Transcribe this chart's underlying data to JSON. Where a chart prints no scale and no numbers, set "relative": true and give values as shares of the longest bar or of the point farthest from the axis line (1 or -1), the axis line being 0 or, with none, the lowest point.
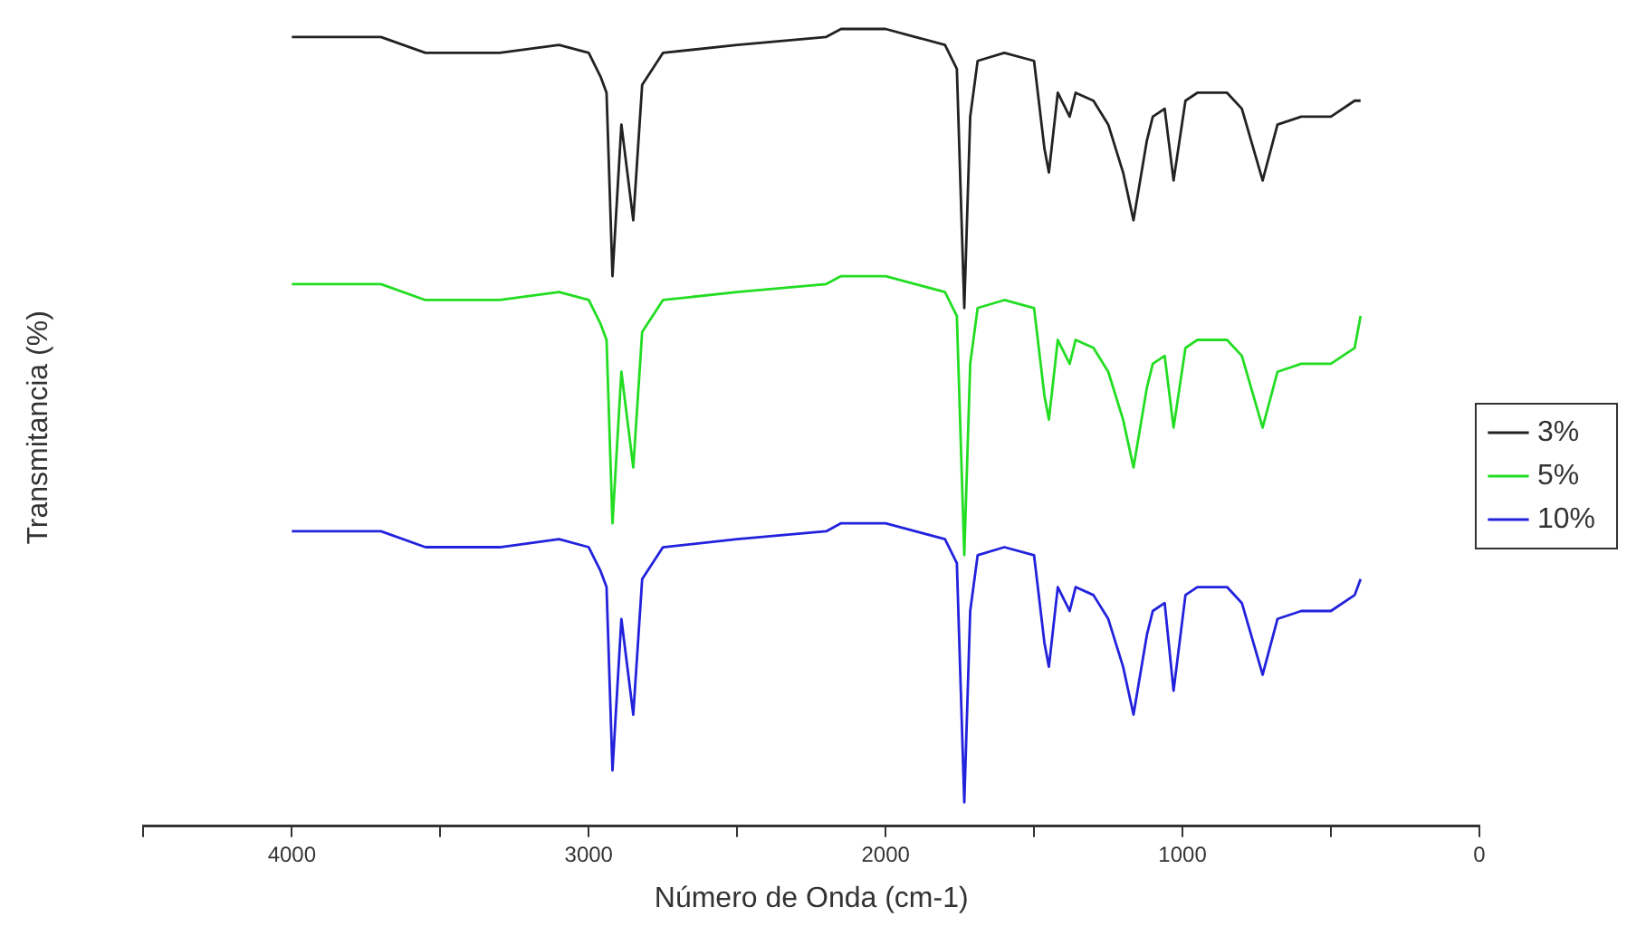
{
  "chart_data": {
    "type": "line",
    "relative": true,
    "xlabel": "Número de Onda (cm-1)",
    "ylabel": "Transmitancia (%)",
    "x": [
      4000,
      3700,
      3550,
      3300,
      3100,
      3000,
      2960,
      2940,
      2920,
      2890,
      2850,
      2820,
      2750,
      2500,
      2200,
      2150,
      2050,
      2000,
      1900,
      1800,
      1760,
      1735,
      1715,
      1690,
      1600,
      1500,
      1465,
      1450,
      1420,
      1380,
      1360,
      1300,
      1250,
      1200,
      1165,
      1120,
      1100,
      1060,
      1030,
      990,
      950,
      850,
      800,
      730,
      680,
      600,
      500,
      420,
      400
    ],
    "xlim": [
      4500,
      0
    ],
    "xticks": [
      {
        "value": 4500,
        "label": null
      },
      4000,
      {
        "value": 3500,
        "label": null
      },
      3000,
      {
        "value": 2500,
        "label": null
      },
      2000,
      {
        "value": 1500,
        "label": null
      },
      1000,
      {
        "value": 500,
        "label": null
      },
      0
    ],
    "series": [
      {
        "name": "3%",
        "color": "#222222",
        "values": [
          0.99,
          0.99,
          0.97,
          0.97,
          0.98,
          0.97,
          0.94,
          0.92,
          0.69,
          0.88,
          0.76,
          0.93,
          0.97,
          0.98,
          0.99,
          1.0,
          1.0,
          1.0,
          0.99,
          0.98,
          0.95,
          0.65,
          0.89,
          0.96,
          0.97,
          0.96,
          0.85,
          0.82,
          0.92,
          0.89,
          0.92,
          0.91,
          0.88,
          0.82,
          0.76,
          0.86,
          0.89,
          0.9,
          0.81,
          0.91,
          0.92,
          0.92,
          0.9,
          0.81,
          0.88,
          0.89,
          0.89,
          0.91,
          0.91
        ]
      },
      {
        "name": "5%",
        "color": "#22dd22",
        "values": [
          0.68,
          0.68,
          0.66,
          0.66,
          0.67,
          0.66,
          0.63,
          0.61,
          0.38,
          0.57,
          0.45,
          0.62,
          0.66,
          0.67,
          0.68,
          0.69,
          0.69,
          0.69,
          0.68,
          0.67,
          0.64,
          0.34,
          0.58,
          0.65,
          0.66,
          0.65,
          0.54,
          0.51,
          0.61,
          0.58,
          0.61,
          0.6,
          0.57,
          0.51,
          0.45,
          0.55,
          0.58,
          0.59,
          0.5,
          0.6,
          0.61,
          0.61,
          0.59,
          0.5,
          0.57,
          0.58,
          0.58,
          0.6,
          0.64
        ]
      },
      {
        "name": "10%",
        "color": "#2222dd",
        "values": [
          0.37,
          0.37,
          0.35,
          0.35,
          0.36,
          0.35,
          0.32,
          0.3,
          0.07,
          0.26,
          0.14,
          0.31,
          0.35,
          0.36,
          0.37,
          0.38,
          0.38,
          0.38,
          0.37,
          0.36,
          0.33,
          0.03,
          0.27,
          0.34,
          0.35,
          0.34,
          0.23,
          0.2,
          0.3,
          0.27,
          0.3,
          0.29,
          0.26,
          0.2,
          0.14,
          0.24,
          0.27,
          0.28,
          0.17,
          0.29,
          0.3,
          0.3,
          0.28,
          0.19,
          0.26,
          0.27,
          0.27,
          0.29,
          0.31
        ]
      }
    ],
    "legend": "right",
    "marker": "none",
    "line_style": "solid",
    "grid": false
  }
}
